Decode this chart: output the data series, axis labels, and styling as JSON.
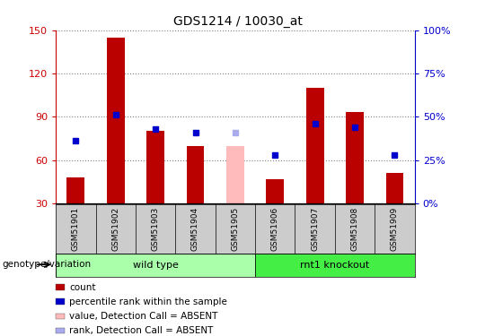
{
  "title": "GDS1214 / 10030_at",
  "samples": [
    "GSM51901",
    "GSM51902",
    "GSM51903",
    "GSM51904",
    "GSM51905",
    "GSM51906",
    "GSM51907",
    "GSM51908",
    "GSM51909"
  ],
  "count_values": [
    48,
    145,
    80,
    70,
    null,
    47,
    110,
    93,
    51
  ],
  "count_absent": [
    null,
    null,
    null,
    null,
    70,
    null,
    null,
    null,
    null
  ],
  "rank_values": [
    36,
    51,
    43,
    41,
    null,
    28,
    46,
    44,
    28
  ],
  "rank_absent": [
    null,
    null,
    null,
    null,
    41,
    null,
    null,
    null,
    null
  ],
  "ylim_left": [
    30,
    150
  ],
  "ylim_right": [
    0,
    100
  ],
  "yticks_left": [
    30,
    60,
    90,
    120,
    150
  ],
  "yticks_right": [
    0,
    25,
    50,
    75,
    100
  ],
  "yticklabels_right": [
    "0%",
    "25%",
    "50%",
    "75%",
    "100%"
  ],
  "bar_color": "#bb0000",
  "bar_absent_color": "#ffbbbb",
  "rank_color": "#0000cc",
  "rank_absent_color": "#aaaaee",
  "wild_type_indices": [
    0,
    1,
    2,
    3,
    4
  ],
  "knockout_indices": [
    5,
    6,
    7,
    8
  ],
  "wild_type_label": "wild type",
  "knockout_label": "rnt1 knockout",
  "group_label": "genotype/variation",
  "wild_type_color": "#aaffaa",
  "knockout_color": "#44ee44",
  "bar_width": 0.45,
  "marker_size": 5,
  "legend_items": [
    {
      "label": "count",
      "color": "#bb0000"
    },
    {
      "label": "percentile rank within the sample",
      "color": "#0000cc"
    },
    {
      "label": "value, Detection Call = ABSENT",
      "color": "#ffbbbb"
    },
    {
      "label": "rank, Detection Call = ABSENT",
      "color": "#aaaaee"
    }
  ]
}
